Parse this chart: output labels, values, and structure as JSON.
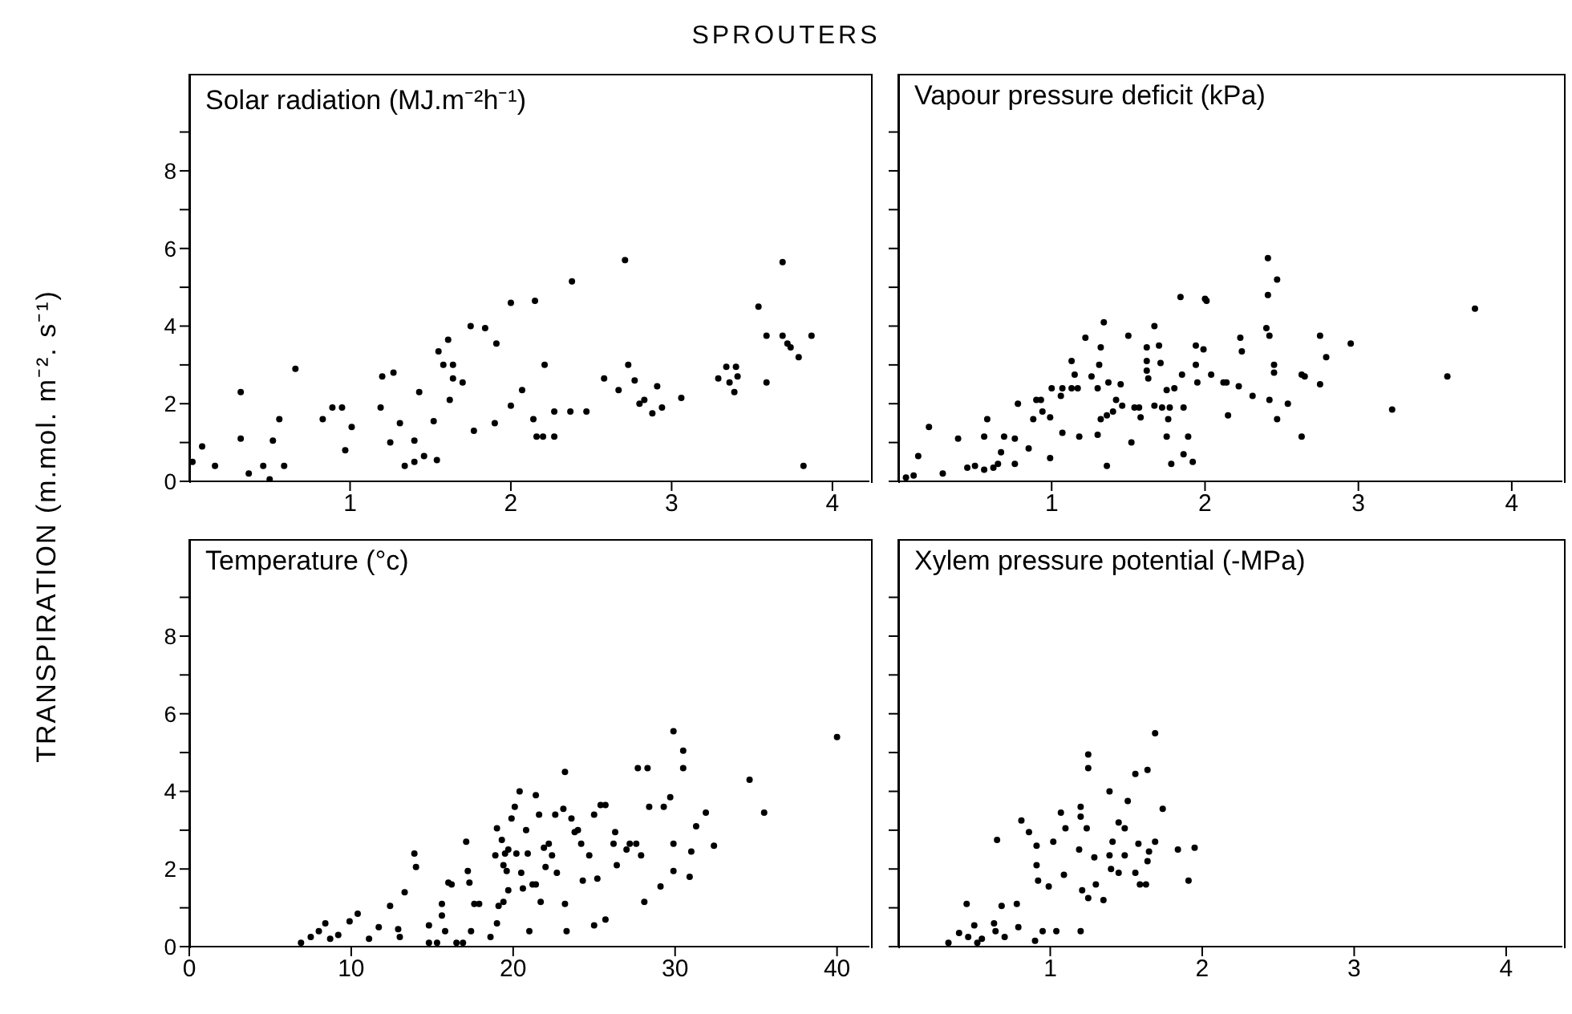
{
  "chart_data": [
    {
      "type": "scatter",
      "title": "Solar radiation (MJ.m⁻²h⁻¹)",
      "ylabel": "TRANSPIRATION (m.mol. m⁻². s⁻¹)",
      "annotations": [
        "SPROUTERS"
      ],
      "color": "#000000",
      "marker": "circle",
      "xlim": [
        0,
        4.23
      ],
      "xticks": [
        1,
        2,
        3,
        4
      ],
      "ylim": [
        0,
        10.5
      ],
      "yticks": [
        0,
        {
          "value": 1,
          "label": null
        },
        2,
        {
          "value": 3,
          "label": null
        },
        4,
        {
          "value": 5,
          "label": null
        },
        6,
        {
          "value": 7,
          "label": null
        },
        8,
        {
          "value": 9,
          "label": null
        }
      ],
      "x": [
        0.02,
        0.08,
        0.16,
        0.32,
        0.32,
        0.37,
        0.46,
        0.5,
        0.52,
        0.56,
        0.59,
        0.66,
        0.83,
        0.89,
        0.95,
        0.97,
        1.01,
        1.19,
        1.2,
        1.27,
        1.25,
        1.31,
        1.34,
        1.4,
        1.4,
        1.43,
        1.46,
        1.52,
        1.54,
        1.55,
        1.58,
        1.61,
        1.62,
        1.64,
        1.64,
        1.7,
        1.75,
        1.77,
        1.84,
        1.9,
        1.91,
        2.0,
        2.0,
        2.07,
        2.15,
        2.14,
        2.16,
        2.2,
        2.21,
        2.27,
        2.27,
        2.37,
        2.38,
        2.47,
        2.58,
        2.67,
        2.71,
        2.73,
        2.77,
        2.8,
        2.83,
        2.88,
        2.91,
        2.94,
        3.06,
        3.29,
        3.34,
        3.36,
        3.39,
        3.4,
        3.41,
        3.54,
        3.59,
        3.59,
        3.69,
        3.69,
        3.72,
        3.74,
        3.79,
        3.82,
        3.87
      ],
      "values": [
        0.5,
        0.9,
        0.4,
        2.3,
        1.1,
        0.2,
        0.4,
        0.05,
        1.05,
        1.6,
        0.4,
        2.9,
        1.6,
        1.9,
        1.9,
        0.8,
        1.4,
        1.9,
        2.7,
        2.8,
        1.0,
        1.5,
        0.4,
        1.05,
        0.5,
        2.3,
        0.65,
        1.55,
        0.55,
        3.35,
        3.0,
        3.65,
        2.1,
        3.0,
        2.65,
        2.55,
        4.0,
        1.3,
        3.95,
        1.5,
        3.55,
        4.6,
        1.95,
        2.35,
        4.65,
        1.6,
        1.15,
        1.15,
        3.0,
        1.15,
        1.8,
        1.8,
        5.15,
        1.8,
        2.65,
        2.35,
        5.7,
        3.0,
        2.6,
        2.0,
        2.1,
        1.75,
        2.45,
        1.9,
        2.15,
        2.65,
        2.95,
        2.55,
        2.3,
        2.95,
        2.7,
        4.5,
        2.55,
        3.75,
        5.65,
        3.75,
        3.55,
        3.45,
        3.2,
        0.4,
        3.75
      ]
    },
    {
      "type": "scatter",
      "title": "Vapour pressure deficit (kPa)",
      "color": "#000000",
      "marker": "circle",
      "tick_labels": "x",
      "xlim": [
        0,
        4.33
      ],
      "xticks": [
        1,
        2,
        3,
        4
      ],
      "ylim": [
        0,
        10.5
      ],
      "yticks": [
        0,
        {
          "value": 1,
          "label": null
        },
        2,
        {
          "value": 3,
          "label": null
        },
        4,
        {
          "value": 5,
          "label": null
        },
        6,
        {
          "value": 7,
          "label": null
        },
        8,
        {
          "value": 9,
          "label": null
        }
      ],
      "x": [
        0.05,
        0.1,
        0.13,
        0.2,
        0.29,
        0.39,
        0.45,
        0.5,
        0.56,
        0.56,
        0.58,
        0.62,
        0.65,
        0.67,
        0.69,
        0.76,
        0.76,
        0.78,
        0.85,
        0.88,
        0.9,
        0.93,
        0.94,
        0.99,
        0.99,
        1.0,
        1.06,
        1.07,
        1.07,
        1.13,
        1.13,
        1.15,
        1.17,
        1.18,
        1.22,
        1.26,
        1.3,
        1.3,
        1.31,
        1.32,
        1.32,
        1.34,
        1.36,
        1.36,
        1.37,
        1.4,
        1.42,
        1.45,
        1.46,
        1.5,
        1.52,
        1.54,
        1.57,
        1.58,
        1.62,
        1.62,
        1.62,
        1.63,
        1.67,
        1.67,
        1.7,
        1.71,
        1.72,
        1.75,
        1.75,
        1.76,
        1.77,
        1.78,
        1.8,
        1.84,
        1.85,
        1.86,
        1.86,
        1.89,
        1.92,
        1.94,
        1.94,
        1.95,
        1.99,
        2.0,
        2.01,
        2.04,
        2.12,
        2.14,
        2.15,
        2.22,
        2.23,
        2.24,
        2.31,
        2.41,
        2.41,
        2.4,
        2.42,
        2.42,
        2.45,
        2.45,
        2.47,
        2.47,
        2.54,
        2.63,
        2.63,
        2.65,
        2.75,
        2.75,
        2.79,
        2.95,
        3.22,
        3.58,
        3.76
      ],
      "values": [
        0.1,
        0.15,
        0.65,
        1.4,
        0.2,
        1.1,
        0.35,
        0.4,
        0.3,
        1.15,
        1.6,
        0.35,
        0.45,
        0.75,
        1.15,
        0.45,
        1.1,
        2.0,
        0.85,
        1.6,
        2.1,
        2.1,
        1.8,
        0.6,
        1.65,
        2.4,
        2.2,
        2.4,
        1.25,
        3.1,
        2.4,
        2.75,
        2.4,
        1.15,
        3.7,
        2.7,
        2.4,
        1.2,
        3.0,
        3.45,
        1.6,
        4.1,
        1.7,
        0.4,
        2.55,
        1.8,
        2.1,
        2.5,
        1.95,
        3.75,
        1.0,
        1.9,
        1.9,
        1.65,
        3.45,
        3.1,
        2.85,
        2.65,
        4.0,
        1.95,
        3.5,
        3.05,
        1.9,
        2.35,
        1.15,
        1.6,
        1.9,
        0.45,
        2.4,
        4.75,
        2.75,
        1.9,
        0.7,
        1.15,
        0.5,
        3.5,
        3.0,
        2.55,
        3.4,
        4.7,
        4.65,
        2.75,
        2.55,
        2.55,
        1.7,
        2.45,
        3.7,
        3.35,
        2.2,
        5.75,
        4.8,
        3.95,
        3.75,
        2.1,
        3.0,
        2.8,
        5.2,
        1.6,
        2.0,
        2.75,
        1.15,
        2.7,
        3.75,
        2.5,
        3.2,
        3.55,
        1.85,
        2.7,
        4.45
      ]
    },
    {
      "type": "scatter",
      "title": "Temperature (°c)",
      "color": "#000000",
      "marker": "circle",
      "xlim": [
        0,
        42
      ],
      "xticks": [
        0,
        10,
        20,
        30,
        40
      ],
      "ylim": [
        0,
        10.5
      ],
      "yticks": [
        0,
        {
          "value": 1,
          "label": null
        },
        2,
        {
          "value": 3,
          "label": null
        },
        4,
        {
          "value": 5,
          "label": null
        },
        6,
        {
          "value": 7,
          "label": null
        },
        8,
        {
          "value": 9,
          "label": null
        }
      ],
      "x": [
        6.9,
        7.5,
        8.0,
        8.4,
        8.7,
        9.2,
        9.9,
        10.4,
        11.1,
        11.7,
        12.4,
        12.9,
        13.0,
        13.3,
        13.9,
        14.0,
        14.8,
        14.8,
        15.3,
        15.6,
        15.6,
        15.8,
        16.0,
        16.2,
        16.5,
        16.9,
        17.1,
        17.2,
        17.3,
        17.4,
        17.6,
        17.9,
        18.6,
        19.0,
        19.0,
        19.1,
        18.9,
        19.3,
        19.4,
        19.4,
        19.5,
        19.6,
        19.7,
        19.7,
        19.9,
        20.1,
        20.2,
        20.4,
        20.5,
        20.6,
        20.8,
        20.9,
        21.0,
        21.2,
        21.4,
        21.4,
        21.6,
        21.7,
        21.9,
        22.0,
        22.2,
        22.4,
        22.6,
        22.7,
        23.1,
        23.2,
        23.2,
        23.3,
        23.6,
        23.8,
        24.0,
        24.2,
        24.3,
        24.7,
        25.0,
        25.0,
        25.2,
        25.4,
        25.7,
        25.7,
        26.2,
        26.3,
        26.4,
        27.0,
        27.2,
        27.6,
        27.9,
        27.7,
        28.3,
        28.1,
        28.4,
        29.1,
        29.3,
        29.7,
        29.9,
        29.9,
        29.9,
        30.5,
        30.5,
        30.9,
        31.0,
        31.3,
        31.9,
        32.4,
        34.6,
        35.5,
        40.0
      ],
      "values": [
        0.1,
        0.25,
        0.4,
        0.6,
        0.2,
        0.3,
        0.65,
        0.85,
        0.2,
        0.5,
        1.05,
        0.45,
        0.25,
        1.4,
        2.4,
        2.05,
        0.55,
        0.1,
        0.1,
        1.1,
        0.8,
        0.4,
        1.65,
        1.6,
        0.1,
        0.1,
        2.7,
        1.95,
        1.65,
        0.4,
        1.1,
        1.1,
        0.25,
        0.6,
        3.05,
        1.05,
        2.35,
        2.75,
        2.1,
        1.15,
        2.4,
        1.95,
        2.5,
        1.45,
        3.3,
        3.6,
        2.4,
        4.0,
        1.9,
        1.5,
        3.0,
        2.4,
        0.4,
        1.6,
        3.9,
        1.6,
        3.4,
        1.15,
        2.55,
        2.05,
        2.65,
        2.35,
        3.4,
        1.9,
        3.55,
        4.5,
        1.1,
        0.4,
        3.3,
        2.95,
        3.0,
        2.65,
        1.7,
        2.35,
        3.4,
        0.55,
        1.75,
        3.65,
        3.65,
        0.7,
        2.65,
        2.95,
        2.1,
        2.5,
        2.65,
        2.65,
        2.35,
        4.6,
        4.6,
        1.15,
        3.6,
        1.55,
        3.6,
        3.85,
        5.55,
        2.65,
        1.95,
        5.05,
        4.6,
        1.8,
        2.45,
        3.1,
        3.45,
        2.6,
        4.3,
        3.45,
        5.4
      ]
    },
    {
      "type": "scatter",
      "title": "Xylem pressure potential (-MPa)",
      "color": "#000000",
      "marker": "circle",
      "tick_labels": "x",
      "xlim": [
        0,
        4.37
      ],
      "xticks": [
        1,
        2,
        3,
        4
      ],
      "ylim": [
        0,
        10.5
      ],
      "yticks": [
        0,
        {
          "value": 1,
          "label": null
        },
        2,
        {
          "value": 3,
          "label": null
        },
        4,
        {
          "value": 5,
          "label": null
        },
        6,
        {
          "value": 7,
          "label": null
        },
        8,
        {
          "value": 9,
          "label": null
        }
      ],
      "x": [
        0.33,
        0.4,
        0.45,
        0.46,
        0.5,
        0.52,
        0.55,
        0.63,
        0.64,
        0.65,
        0.68,
        0.7,
        0.78,
        0.79,
        0.81,
        0.86,
        0.9,
        0.91,
        0.91,
        0.92,
        0.95,
        0.99,
        1.02,
        1.04,
        1.07,
        1.09,
        1.1,
        1.19,
        1.2,
        1.2,
        1.2,
        1.21,
        1.24,
        1.25,
        1.25,
        1.25,
        1.29,
        1.3,
        1.35,
        1.39,
        1.39,
        1.4,
        1.41,
        1.45,
        1.45,
        1.49,
        1.49,
        1.51,
        1.56,
        1.56,
        1.58,
        1.59,
        1.63,
        1.64,
        1.64,
        1.65,
        1.69,
        1.69,
        1.74,
        1.84,
        1.91,
        1.95
      ],
      "values": [
        0.1,
        0.35,
        1.1,
        0.25,
        0.55,
        0.1,
        0.2,
        0.6,
        0.4,
        2.75,
        1.05,
        0.25,
        1.1,
        0.5,
        3.25,
        2.95,
        0.15,
        2.6,
        2.1,
        1.7,
        0.4,
        1.55,
        2.7,
        0.4,
        3.45,
        1.85,
        3.05,
        2.5,
        3.6,
        3.35,
        0.4,
        1.45,
        3.05,
        1.25,
        4.95,
        4.6,
        2.3,
        1.6,
        1.2,
        4.0,
        2.35,
        2.0,
        2.7,
        1.9,
        3.2,
        3.05,
        2.35,
        3.75,
        1.9,
        4.45,
        2.65,
        1.6,
        1.6,
        4.55,
        2.2,
        2.45,
        5.5,
        2.7,
        3.55,
        2.5,
        1.7,
        2.55
      ]
    }
  ]
}
